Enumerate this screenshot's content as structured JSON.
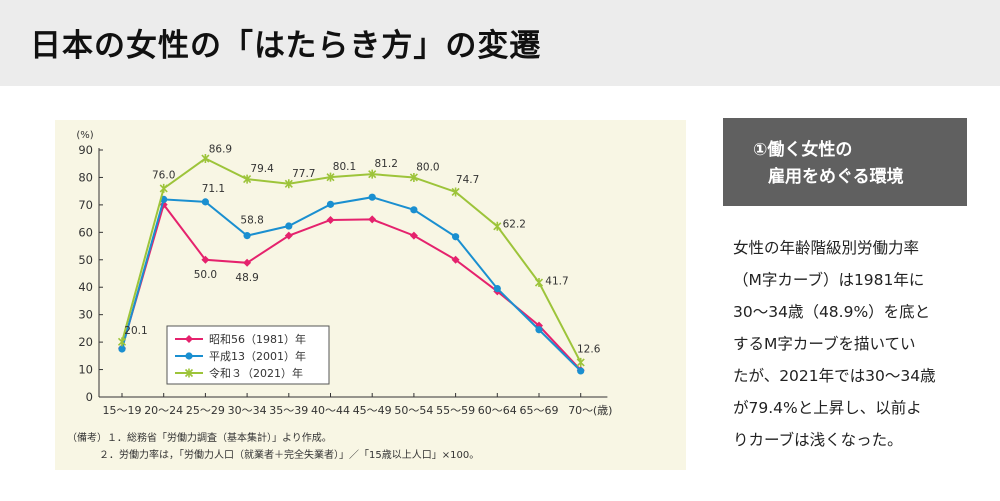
{
  "header": {
    "title": "日本の女性の「はたらき方」の変遷"
  },
  "side": {
    "heading_line1": "①働く女性の",
    "heading_line2": "雇用をめぐる環境",
    "paragraph": [
      "女性の年齢階級別労働力率",
      "（M字カーブ）は1981年に",
      "30〜34歳（48.9%）を底と",
      "するM字カーブを描いてい",
      "たが、2021年では30〜34歳",
      "が79.4%と上昇し、以前よ",
      "りカーブは浅くなった。"
    ]
  },
  "notes": {
    "line1": "（備考）１．総務省「労働力調査（基本集計）」より作成。",
    "line2": "２．労働力率は，「労働力人口（就業者＋完全失業者）」／「15歳以上人口」×100。"
  },
  "chart_data": {
    "type": "line",
    "categories": [
      "15～19",
      "20～24",
      "25～29",
      "30～34",
      "35～39",
      "40～44",
      "45～49",
      "50～54",
      "55～59",
      "60～64",
      "65～69",
      "70～"
    ],
    "x_unit": "(歳)",
    "y_unit": "(%)",
    "ylim": [
      0,
      90
    ],
    "yticks": [
      0,
      10,
      20,
      30,
      40,
      50,
      60,
      70,
      80,
      90
    ],
    "grid": false,
    "legend_position": "bottom-left",
    "series": [
      {
        "name": "昭和56（1981）年",
        "color": "#e5226d",
        "marker": "diamond",
        "values": [
          17.8,
          70.1,
          50.0,
          48.9,
          58.8,
          64.5,
          64.7,
          58.8,
          50.0,
          38.5,
          26.0,
          9.8
        ],
        "labels": [
          null,
          null,
          "50.0",
          "48.9",
          null,
          null,
          null,
          null,
          null,
          null,
          null,
          null
        ]
      },
      {
        "name": "平成13（2001）年",
        "color": "#1a8fd0",
        "marker": "circle",
        "values": [
          17.5,
          72.0,
          71.1,
          58.8,
          62.3,
          70.2,
          72.8,
          68.2,
          58.4,
          39.5,
          24.5,
          9.5
        ],
        "labels": [
          null,
          null,
          "71.1",
          "58.8",
          null,
          null,
          null,
          null,
          null,
          null,
          null,
          null
        ]
      },
      {
        "name": "令和３（2021）年",
        "color": "#9dc43a",
        "marker": "x",
        "values": [
          20.1,
          76.0,
          86.9,
          79.4,
          77.7,
          80.1,
          81.2,
          80.0,
          74.7,
          62.2,
          41.7,
          12.6
        ],
        "labels": [
          "20.1",
          "76.0",
          "86.9",
          "79.4",
          "77.7",
          "80.1",
          "81.2",
          "80.0",
          "74.7",
          "62.2",
          "41.7",
          "12.6"
        ]
      }
    ]
  }
}
